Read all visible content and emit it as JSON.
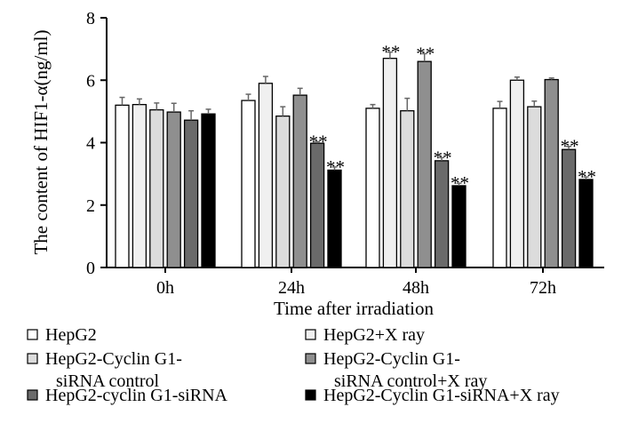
{
  "chart_data": {
    "type": "bar",
    "title": "",
    "xlabel": "Time after irradiation",
    "ylabel": "The content of HIF1-α(ng/ml)",
    "ylim": [
      0,
      8
    ],
    "yticks": [
      "0",
      "2",
      "4",
      "6",
      "8"
    ],
    "categories": [
      "0h",
      "24h",
      "48h",
      "72h"
    ],
    "series": [
      {
        "name": "HepG2",
        "color": "#ffffff",
        "values": [
          5.2,
          5.35,
          5.1,
          5.1
        ],
        "errors": [
          0.25,
          0.2,
          0.12,
          0.22
        ],
        "sig": [
          "",
          "",
          "",
          ""
        ]
      },
      {
        "name": "HepG2+X ray",
        "color": "#f0f0f0",
        "values": [
          5.22,
          5.9,
          6.7,
          6.0
        ],
        "errors": [
          0.18,
          0.22,
          0.2,
          0.1
        ],
        "sig": [
          "",
          "",
          "**",
          ""
        ]
      },
      {
        "name": "HepG2-Cyclin G1-siRNA control",
        "color": "#dcdcdc",
        "values": [
          5.05,
          4.85,
          5.02,
          5.15
        ],
        "errors": [
          0.22,
          0.3,
          0.4,
          0.18
        ],
        "sig": [
          "",
          "",
          "",
          ""
        ]
      },
      {
        "name": "HepG2-Cyclin G1-siRNA control+X ray",
        "color": "#8f8f8f",
        "values": [
          4.98,
          5.52,
          6.6,
          6.02
        ],
        "errors": [
          0.28,
          0.22,
          0.25,
          0.05
        ],
        "sig": [
          "",
          "",
          "**",
          ""
        ]
      },
      {
        "name": "HepG2-cyclin G1-siRNA",
        "color": "#6a6a6a",
        "values": [
          4.72,
          3.98,
          3.42,
          3.78
        ],
        "errors": [
          0.3,
          0.05,
          0.1,
          0.1
        ],
        "sig": [
          "",
          "**",
          "**",
          "**"
        ]
      },
      {
        "name": "HepG2-Cyclin G1-siRNA+X ray",
        "color": "#000000",
        "values": [
          4.92,
          3.12,
          2.62,
          2.82
        ],
        "errors": [
          0.15,
          0.1,
          0.08,
          0.08
        ],
        "sig": [
          "",
          "**",
          "**",
          "**"
        ]
      }
    ],
    "legend": {
      "position": "bottom",
      "items": [
        {
          "line1": "HepG2",
          "line2": ""
        },
        {
          "line1": "HepG2+X ray",
          "line2": ""
        },
        {
          "line1": "HepG2-Cyclin G1-",
          "line2": "siRNA control"
        },
        {
          "line1": "HepG2-Cyclin G1-",
          "line2": "siRNA control+X ray"
        },
        {
          "line1": "HepG2-cyclin G1-siRNA",
          "line2": ""
        },
        {
          "line1": "HepG2-Cyclin G1-siRNA+X ray",
          "line2": ""
        }
      ]
    }
  }
}
